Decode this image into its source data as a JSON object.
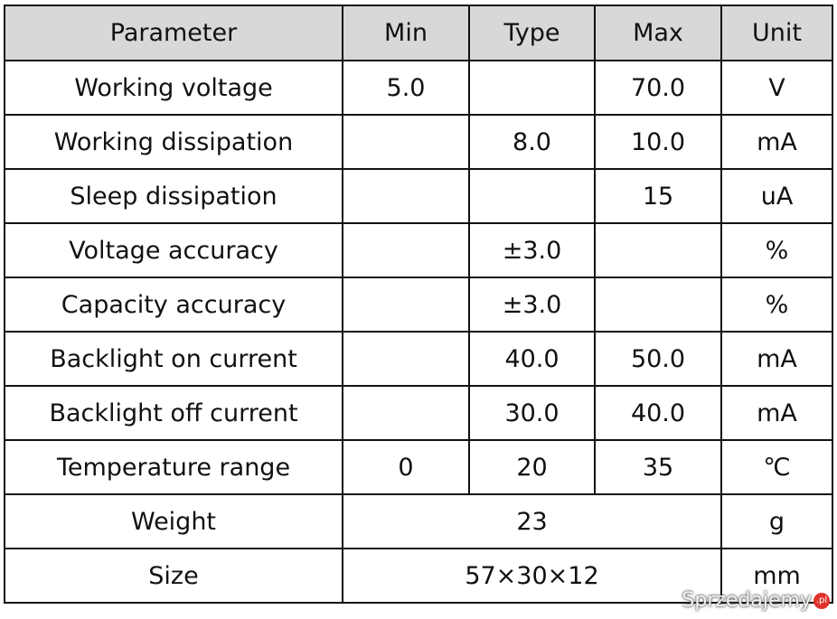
{
  "table": {
    "header": [
      "Parameter",
      "Min",
      "Type",
      "Max",
      "Unit"
    ],
    "rows": [
      [
        "Working voltage",
        "5.0",
        null,
        "70.0",
        "V"
      ],
      [
        "Working dissipation",
        null,
        "8.0",
        "10.0",
        "mA"
      ],
      [
        "Sleep dissipation",
        null,
        null,
        "15",
        "uA"
      ],
      [
        "Voltage accuracy",
        null,
        "±3.0",
        null,
        "%"
      ],
      [
        "Capacity accuracy",
        null,
        "±3.0",
        null,
        "%"
      ],
      [
        "Backlight on current",
        null,
        "40.0",
        "50.0",
        "mA"
      ],
      [
        "Backlight off current",
        null,
        "30.0",
        "40.0",
        "mA"
      ],
      [
        "Temperature range",
        "0",
        "20",
        "35",
        "℃"
      ],
      [
        "Weight",
        "23",
        "g"
      ],
      [
        "Size",
        "57×30×12",
        "mm"
      ]
    ]
  },
  "watermark": {
    "text": "Sprzedajemy",
    "badge": ".pl"
  }
}
